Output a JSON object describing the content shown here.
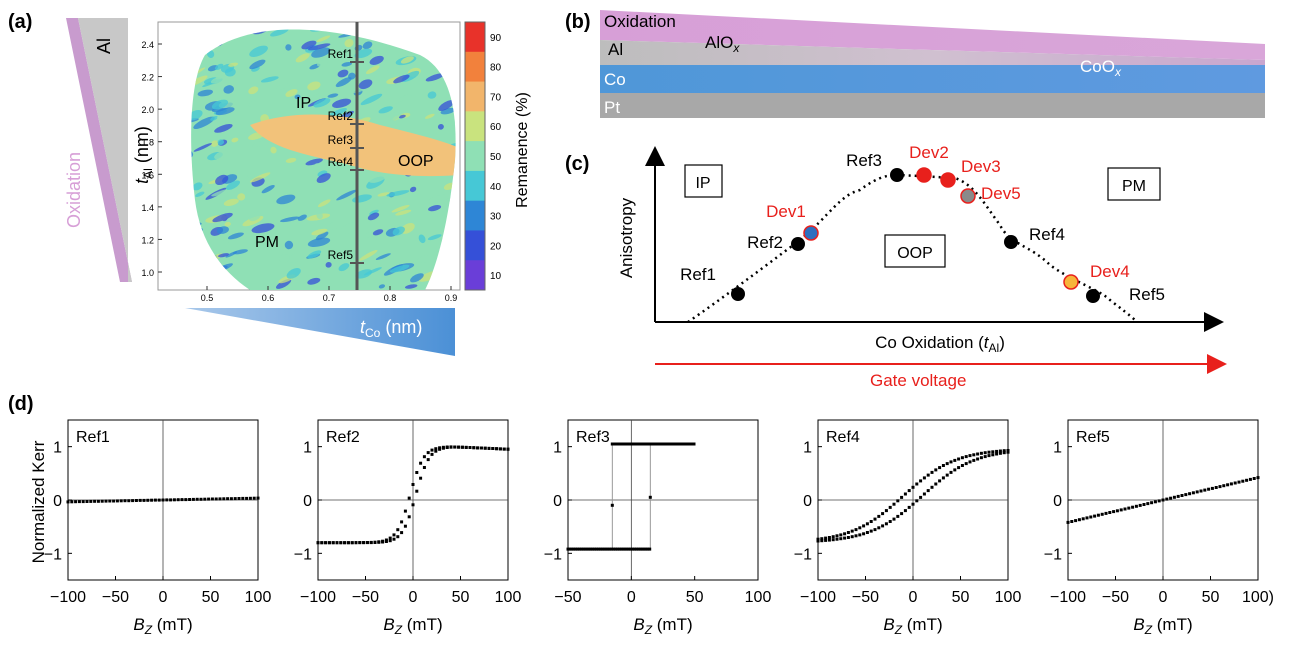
{
  "panel_a": {
    "label": "(a)",
    "wedge_al_label": "Al",
    "wedge_oxidation_label": "Oxidation",
    "y_axis_label_main": "t",
    "y_axis_label_sub": "Al",
    "y_axis_unit": " (nm)",
    "x_axis_label_main": "t",
    "x_axis_label_sub": "Co",
    "x_axis_unit": " (nm)",
    "y_ticks": [
      "2.4",
      "2.2",
      "2.0",
      "1.8",
      "1.6",
      "1.4",
      "1.2",
      "1.0"
    ],
    "x_ticks": [
      "0.5",
      "0.6",
      "0.7",
      "0.8",
      "0.9"
    ],
    "region_labels": {
      "ip": "IP",
      "oop": "OOP",
      "pm": "PM"
    },
    "ref_labels": [
      "Ref1",
      "Ref2",
      "Ref3",
      "Ref4",
      "Ref5"
    ],
    "colorbar_title": "Remanence (%)",
    "colorbar_ticks": [
      "90",
      "80",
      "70",
      "60",
      "50",
      "40",
      "30",
      "20",
      "10"
    ],
    "colorbar_colors": [
      "#e8322a",
      "#f2813c",
      "#f2b56b",
      "#c9e37e",
      "#8fe0b5",
      "#46c8d6",
      "#2e86d6",
      "#3550d8",
      "#6a3ed8"
    ]
  },
  "panel_b": {
    "label": "(b)",
    "oxidation": "Oxidation",
    "al": "Al",
    "alox_main": "AlO",
    "alox_sub": "x",
    "co": "Co",
    "coox_main": "CoO",
    "coox_sub": "x",
    "pt": "Pt"
  },
  "panel_c": {
    "label": "(c)",
    "y_axis_label": "Anisotropy",
    "x_axis_label_main": "Co Oxidation (",
    "x_axis_label_t": "t",
    "x_axis_label_sub": "Al",
    "x_axis_label_end": ")",
    "gate_voltage": "Gate voltage",
    "box_ip": "IP",
    "box_oop": "OOP",
    "box_pm": "PM",
    "refs": [
      "Ref1",
      "Ref2",
      "Ref3",
      "Ref4",
      "Ref5"
    ],
    "devs": [
      "Dev1",
      "Dev2",
      "Dev3",
      "Dev4",
      "Dev5"
    ],
    "colors": {
      "ref": "#000000",
      "dev_text": "#e8201c",
      "dev1": "#2e6fbf",
      "dev2": "#e8201c",
      "dev3": "#e8201c",
      "dev4": "#f7b53b",
      "dev5": "#8a8a8a"
    }
  },
  "panel_d": {
    "label": "(d)",
    "y_axis_label": "Normalized Kerr",
    "x_axis_label_main": "B",
    "x_axis_label_sub": "Z",
    "x_axis_unit": " (mT)",
    "y_ticks": [
      "1",
      "0",
      "−1"
    ],
    "x_ticks_wide": [
      "−100",
      "−50",
      "0",
      "50",
      "100"
    ],
    "x_ticks_ref3": [
      "−50",
      "0",
      "50",
      "100"
    ],
    "x_ticks_ref5": [
      "−100",
      "−50",
      "0",
      "50",
      "100)"
    ]
  },
  "chart_data": [
    {
      "type": "scatter",
      "title": "Ref1",
      "xlabel": "B_Z (mT)",
      "ylabel": "Normalized Kerr",
      "xlim": [
        -100,
        100
      ],
      "ylim": [
        -1.5,
        1.5
      ],
      "x": [
        -100,
        -50,
        0,
        50,
        100
      ],
      "y": [
        -0.03,
        -0.01,
        0.0,
        0.02,
        0.04
      ]
    },
    {
      "type": "scatter",
      "title": "Ref2",
      "xlabel": "B_Z (mT)",
      "ylabel": "Normalized Kerr",
      "xlim": [
        -100,
        100
      ],
      "ylim": [
        -1.5,
        1.5
      ],
      "x": [
        -100,
        -50,
        -20,
        -10,
        0,
        10,
        20,
        50,
        100
      ],
      "y": [
        -0.82,
        -0.8,
        -0.55,
        -0.3,
        0.05,
        0.45,
        0.8,
        1.0,
        0.95
      ]
    },
    {
      "type": "scatter",
      "title": "Ref3",
      "xlabel": "B_Z (mT)",
      "ylabel": "Normalized Kerr",
      "xlim": [
        -50,
        100
      ],
      "ylim": [
        -1.5,
        1.5
      ],
      "x": [
        -50,
        -15,
        -15,
        15,
        15,
        50
      ],
      "y": [
        -0.9,
        -0.9,
        1.05,
        -0.9,
        1.05,
        1.05
      ]
    },
    {
      "type": "scatter",
      "title": "Ref4",
      "xlabel": "B_Z (mT)",
      "ylabel": "Normalized Kerr",
      "xlim": [
        -100,
        100
      ],
      "ylim": [
        -1.5,
        1.5
      ],
      "x": [
        -100,
        -50,
        0,
        50,
        100
      ],
      "y": [
        -0.78,
        -0.55,
        0.05,
        0.75,
        0.97
      ]
    },
    {
      "type": "scatter",
      "title": "Ref5",
      "xlabel": "B_Z (mT)",
      "ylabel": "Normalized Kerr",
      "xlim": [
        -100,
        100
      ],
      "ylim": [
        -1.5,
        1.5
      ],
      "x": [
        -100,
        -50,
        0,
        50,
        100
      ],
      "y": [
        -0.42,
        -0.2,
        0.0,
        0.2,
        0.42
      ]
    }
  ]
}
